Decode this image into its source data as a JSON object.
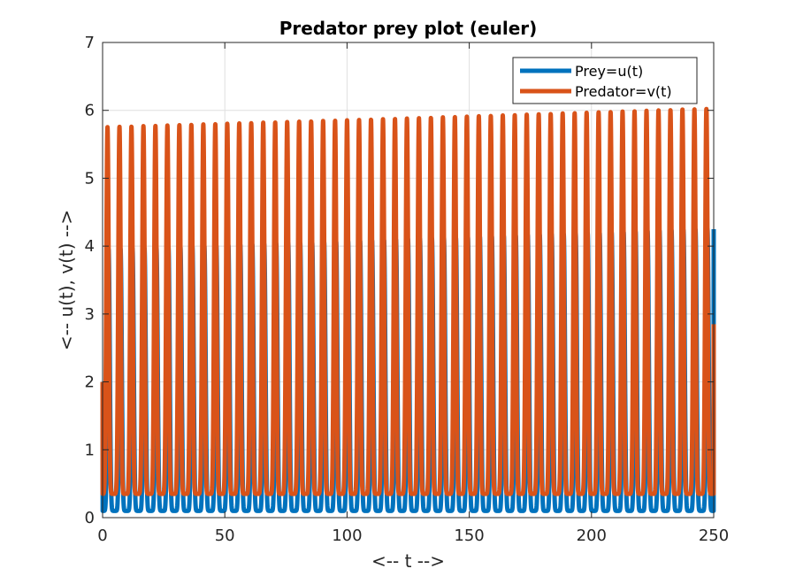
{
  "chart_data": {
    "type": "line",
    "title": "Predator prey plot (euler)",
    "xlabel": "<-- t -->",
    "ylabel": "<-- u(t), v(t) -->",
    "xlim": [
      0,
      250
    ],
    "ylim": [
      0,
      7
    ],
    "x_ticks": [
      "0",
      "50",
      "100",
      "150",
      "200",
      "250"
    ],
    "y_ticks": [
      "0",
      "1",
      "2",
      "3",
      "4",
      "5",
      "6",
      "7"
    ],
    "grid": true,
    "legend_position": "top-right",
    "oscillation_period": 4.9,
    "series": [
      {
        "name": "Prey=u(t)",
        "color": "#0072BD",
        "initial_value": 2.0,
        "final_value": 4.25,
        "peak_values": [
          {
            "t": 0,
            "v": 3.95
          },
          {
            "t": 125,
            "v": 4.1
          },
          {
            "t": 248,
            "v": 4.25
          }
        ],
        "trough_values": [
          {
            "t": 0,
            "v": 0.1
          },
          {
            "t": 250,
            "v": 0.1
          }
        ]
      },
      {
        "name": "Predator=v(t)",
        "color": "#D95319",
        "initial_value": 2.0,
        "final_value": 2.85,
        "peak_values": [
          {
            "t": 0,
            "v": 5.75
          },
          {
            "t": 125,
            "v": 5.88
          },
          {
            "t": 245,
            "v": 6.02
          }
        ],
        "trough_values": [
          {
            "t": 0,
            "v": 0.35
          },
          {
            "t": 250,
            "v": 0.35
          }
        ]
      }
    ]
  }
}
